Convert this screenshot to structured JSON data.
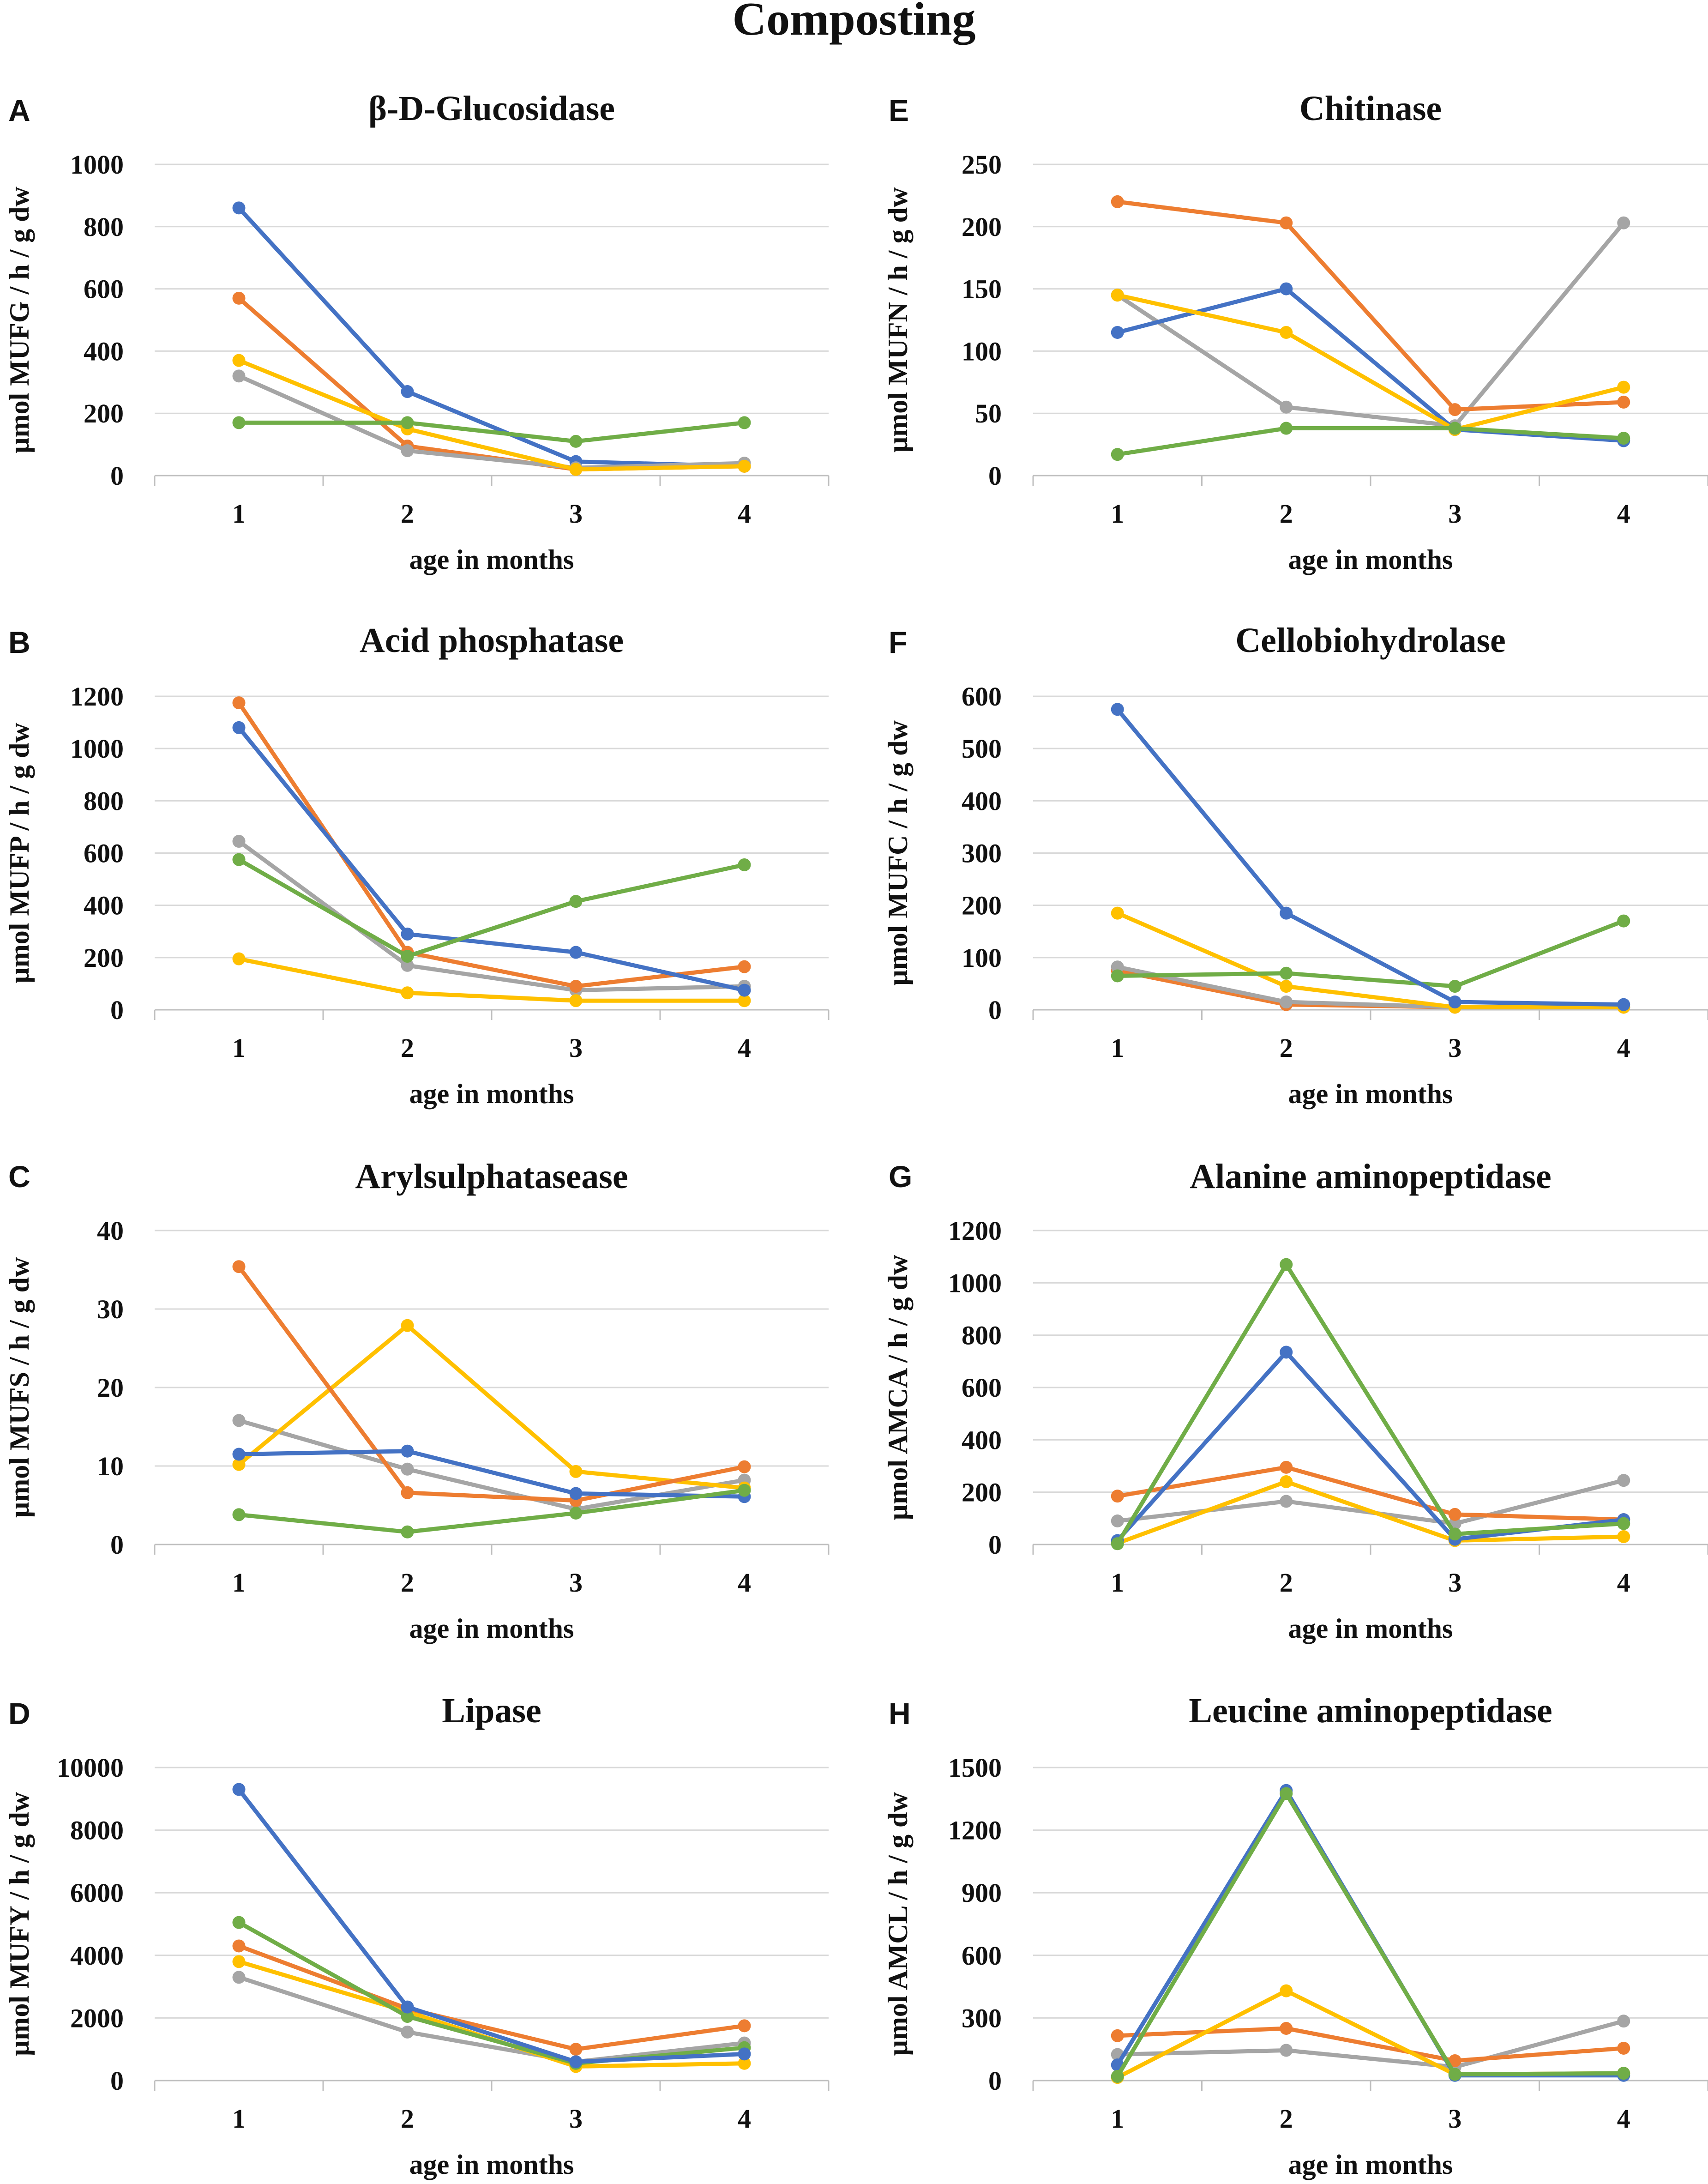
{
  "figure_title": "Composting",
  "colors": {
    "blue": "#4472c4",
    "orange": "#ed7d31",
    "gray": "#a5a5a5",
    "yellow": "#ffc000",
    "green": "#70ad47",
    "gridline": "#d9d9d9",
    "axis": "#bfbfbf"
  },
  "chart_data": [
    {
      "panel": "A",
      "type": "line",
      "title": "β-D-Glucosidase",
      "xlabel": "age in months",
      "ylabel": "µmol MUFG / h / g dw",
      "categories": [
        "1",
        "2",
        "3",
        "4"
      ],
      "ylim": [
        0,
        1000
      ],
      "yticks": [
        0,
        200,
        400,
        600,
        800,
        1000
      ],
      "series": [
        {
          "name": "blue",
          "color": "#4472c4",
          "values": [
            860,
            270,
            45,
            30
          ]
        },
        {
          "name": "orange",
          "color": "#ed7d31",
          "values": [
            570,
            95,
            20,
            30
          ]
        },
        {
          "name": "gray",
          "color": "#a5a5a5",
          "values": [
            320,
            80,
            25,
            40
          ]
        },
        {
          "name": "yellow",
          "color": "#ffc000",
          "values": [
            370,
            150,
            20,
            30
          ]
        },
        {
          "name": "green",
          "color": "#70ad47",
          "values": [
            170,
            170,
            110,
            170
          ]
        }
      ]
    },
    {
      "panel": "E",
      "type": "line",
      "title": "Chitinase",
      "xlabel": "age in months",
      "ylabel": "µmol MUFN / h / g dw",
      "categories": [
        "1",
        "2",
        "3",
        "4"
      ],
      "ylim": [
        0,
        250
      ],
      "yticks": [
        0,
        50,
        100,
        150,
        200,
        250
      ],
      "series": [
        {
          "name": "gray",
          "color": "#a5a5a5",
          "values": [
            145,
            55,
            40,
            203
          ]
        },
        {
          "name": "blue",
          "color": "#4472c4",
          "values": [
            115,
            150,
            37,
            28
          ]
        },
        {
          "name": "orange",
          "color": "#ed7d31",
          "values": [
            220,
            203,
            53,
            59
          ]
        },
        {
          "name": "yellow",
          "color": "#ffc000",
          "values": [
            145,
            115,
            37,
            71
          ]
        },
        {
          "name": "green",
          "color": "#70ad47",
          "values": [
            17,
            38,
            38,
            30
          ]
        }
      ]
    },
    {
      "panel": "B",
      "type": "line",
      "title": "Acid phosphatase",
      "xlabel": "age in months",
      "ylabel": "µmol MUFP / h / g dw",
      "categories": [
        "1",
        "2",
        "3",
        "4"
      ],
      "ylim": [
        0,
        1200
      ],
      "yticks": [
        0,
        200,
        400,
        600,
        800,
        1000,
        1200
      ],
      "series": [
        {
          "name": "gray",
          "color": "#a5a5a5",
          "values": [
            645,
            170,
            75,
            90
          ]
        },
        {
          "name": "yellow",
          "color": "#ffc000",
          "values": [
            195,
            65,
            35,
            35
          ]
        },
        {
          "name": "orange",
          "color": "#ed7d31",
          "values": [
            1175,
            220,
            90,
            165
          ]
        },
        {
          "name": "blue",
          "color": "#4472c4",
          "values": [
            1080,
            290,
            220,
            75
          ]
        },
        {
          "name": "green",
          "color": "#70ad47",
          "values": [
            575,
            205,
            415,
            555
          ]
        }
      ]
    },
    {
      "panel": "F",
      "type": "line",
      "title": "Cellobiohydrolase",
      "xlabel": "age in months",
      "ylabel": "µmol MUFC / h / g dw",
      "categories": [
        "1",
        "2",
        "3",
        "4"
      ],
      "ylim": [
        0,
        600
      ],
      "yticks": [
        0,
        100,
        200,
        300,
        400,
        500,
        600
      ],
      "series": [
        {
          "name": "orange",
          "color": "#ed7d31",
          "values": [
            75,
            10,
            5,
            5
          ]
        },
        {
          "name": "gray",
          "color": "#a5a5a5",
          "values": [
            82,
            15,
            5,
            5
          ]
        },
        {
          "name": "yellow",
          "color": "#ffc000",
          "values": [
            185,
            45,
            5,
            5
          ]
        },
        {
          "name": "green",
          "color": "#70ad47",
          "values": [
            65,
            70,
            45,
            170
          ]
        },
        {
          "name": "blue",
          "color": "#4472c4",
          "values": [
            575,
            185,
            15,
            10
          ]
        }
      ]
    },
    {
      "panel": "C",
      "type": "line",
      "title": "Arylsulphatasease",
      "xlabel": "age in months",
      "ylabel": "µmol MUFS / h / g dw",
      "categories": [
        "1",
        "2",
        "3",
        "4"
      ],
      "ylim": [
        0,
        40
      ],
      "yticks": [
        0,
        10,
        20,
        30,
        40
      ],
      "series": [
        {
          "name": "gray",
          "color": "#a5a5a5",
          "values": [
            15.8,
            9.6,
            4.5,
            8.2
          ]
        },
        {
          "name": "yellow",
          "color": "#ffc000",
          "values": [
            10.2,
            27.9,
            9.3,
            7.2
          ]
        },
        {
          "name": "orange",
          "color": "#ed7d31",
          "values": [
            35.4,
            6.6,
            5.6,
            9.9
          ]
        },
        {
          "name": "blue",
          "color": "#4472c4",
          "values": [
            11.5,
            11.9,
            6.5,
            6.1
          ]
        },
        {
          "name": "green",
          "color": "#70ad47",
          "values": [
            3.8,
            1.6,
            4.0,
            6.9
          ]
        }
      ]
    },
    {
      "panel": "G",
      "type": "line",
      "title": "Alanine aminopeptidase",
      "xlabel": "age in months",
      "ylabel": "µmol AMCA / h / g dw",
      "categories": [
        "1",
        "2",
        "3",
        "4"
      ],
      "ylim": [
        0,
        1200
      ],
      "yticks": [
        0,
        200,
        400,
        600,
        800,
        1000,
        1200
      ],
      "series": [
        {
          "name": "gray",
          "color": "#a5a5a5",
          "values": [
            90,
            165,
            80,
            245
          ]
        },
        {
          "name": "orange",
          "color": "#ed7d31",
          "values": [
            185,
            295,
            115,
            95
          ]
        },
        {
          "name": "yellow",
          "color": "#ffc000",
          "values": [
            5,
            240,
            15,
            30
          ]
        },
        {
          "name": "blue",
          "color": "#4472c4",
          "values": [
            15,
            735,
            20,
            95
          ]
        },
        {
          "name": "green",
          "color": "#70ad47",
          "values": [
            3,
            1070,
            40,
            80
          ]
        }
      ]
    },
    {
      "panel": "D",
      "type": "line",
      "title": "Lipase",
      "xlabel": "age in months",
      "ylabel": "µmol MUFY / h / g dw",
      "categories": [
        "1",
        "2",
        "3",
        "4"
      ],
      "ylim": [
        0,
        10000
      ],
      "yticks": [
        0,
        2000,
        4000,
        6000,
        8000,
        10000
      ],
      "series": [
        {
          "name": "gray",
          "color": "#a5a5a5",
          "values": [
            3300,
            1550,
            600,
            1200
          ]
        },
        {
          "name": "yellow",
          "color": "#ffc000",
          "values": [
            3800,
            2200,
            450,
            550
          ]
        },
        {
          "name": "orange",
          "color": "#ed7d31",
          "values": [
            4300,
            2300,
            1000,
            1750
          ]
        },
        {
          "name": "green",
          "color": "#70ad47",
          "values": [
            5050,
            2050,
            550,
            1050
          ]
        },
        {
          "name": "blue",
          "color": "#4472c4",
          "values": [
            9300,
            2350,
            600,
            850
          ]
        }
      ]
    },
    {
      "panel": "H",
      "type": "line",
      "title": "Leucine aminopeptidase",
      "xlabel": "age in months",
      "ylabel": "µmol AMCL / h / g dw",
      "categories": [
        "1",
        "2",
        "3",
        "4"
      ],
      "ylim": [
        0,
        1500
      ],
      "yticks": [
        0,
        300,
        600,
        900,
        1200,
        1500
      ],
      "series": [
        {
          "name": "gray",
          "color": "#a5a5a5",
          "values": [
            125,
            145,
            65,
            285
          ]
        },
        {
          "name": "orange",
          "color": "#ed7d31",
          "values": [
            215,
            250,
            95,
            155
          ]
        },
        {
          "name": "yellow",
          "color": "#ffc000",
          "values": [
            15,
            430,
            30,
            35
          ]
        },
        {
          "name": "blue",
          "color": "#4472c4",
          "values": [
            75,
            1390,
            25,
            25
          ]
        },
        {
          "name": "green",
          "color": "#70ad47",
          "values": [
            20,
            1375,
            30,
            35
          ]
        }
      ]
    }
  ]
}
